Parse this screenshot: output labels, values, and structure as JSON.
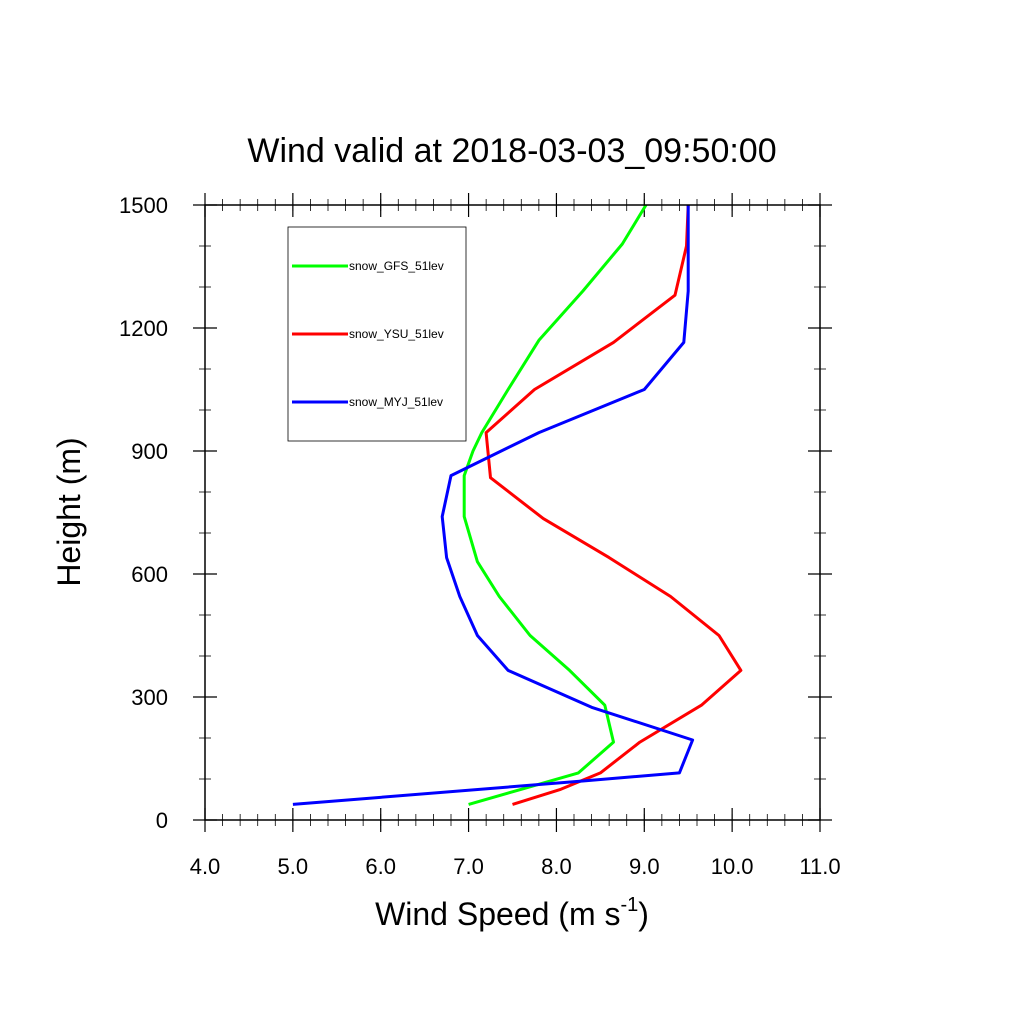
{
  "chart_data": {
    "type": "line",
    "title": "Wind valid at 2018-03-03_09:50:00",
    "xlabel": "Wind Speed (m s",
    "xlabel_sup": "-1",
    "xlabel_end": ")",
    "ylabel": "Height (m)",
    "xlim": [
      4.0,
      11.0
    ],
    "ylim": [
      0,
      1500
    ],
    "x_ticks": [
      "4.0",
      "5.0",
      "6.0",
      "7.0",
      "8.0",
      "9.0",
      "10.0",
      "11.0"
    ],
    "y_ticks": [
      "0",
      "300",
      "600",
      "900",
      "1200",
      "1500"
    ],
    "grid": false,
    "legend_position": "top-left",
    "series": [
      {
        "name": "snow_GFS_51lev",
        "color": "#00ff00",
        "points": [
          [
            7.0,
            38
          ],
          [
            7.6,
            75
          ],
          [
            8.25,
            115
          ],
          [
            8.65,
            190
          ],
          [
            8.55,
            280
          ],
          [
            8.15,
            365
          ],
          [
            7.7,
            450
          ],
          [
            7.35,
            545
          ],
          [
            7.1,
            630
          ],
          [
            6.95,
            740
          ],
          [
            6.95,
            840
          ],
          [
            7.05,
            900
          ],
          [
            7.15,
            945
          ],
          [
            7.45,
            1050
          ],
          [
            7.8,
            1170
          ],
          [
            8.3,
            1290
          ],
          [
            8.75,
            1405
          ],
          [
            9.02,
            1500
          ]
        ]
      },
      {
        "name": "snow_YSU_51lev",
        "color": "#ff0000",
        "points": [
          [
            7.5,
            38
          ],
          [
            8.05,
            75
          ],
          [
            8.5,
            115
          ],
          [
            8.95,
            190
          ],
          [
            9.65,
            280
          ],
          [
            10.1,
            365
          ],
          [
            9.85,
            450
          ],
          [
            9.3,
            545
          ],
          [
            8.6,
            640
          ],
          [
            7.85,
            735
          ],
          [
            7.25,
            835
          ],
          [
            7.2,
            945
          ],
          [
            7.75,
            1050
          ],
          [
            8.65,
            1165
          ],
          [
            9.35,
            1280
          ],
          [
            9.48,
            1400
          ],
          [
            9.5,
            1500
          ]
        ]
      },
      {
        "name": "snow_MYJ_51lev",
        "color": "#0000ff",
        "points": [
          [
            5.0,
            38
          ],
          [
            8.3,
            95
          ],
          [
            9.4,
            115
          ],
          [
            9.55,
            195
          ],
          [
            8.4,
            275
          ],
          [
            7.45,
            365
          ],
          [
            7.1,
            450
          ],
          [
            6.9,
            545
          ],
          [
            6.75,
            640
          ],
          [
            6.7,
            740
          ],
          [
            6.8,
            840
          ],
          [
            7.8,
            945
          ],
          [
            9.0,
            1050
          ],
          [
            9.45,
            1165
          ],
          [
            9.5,
            1290
          ],
          [
            9.5,
            1400
          ],
          [
            9.5,
            1500
          ]
        ]
      }
    ]
  }
}
